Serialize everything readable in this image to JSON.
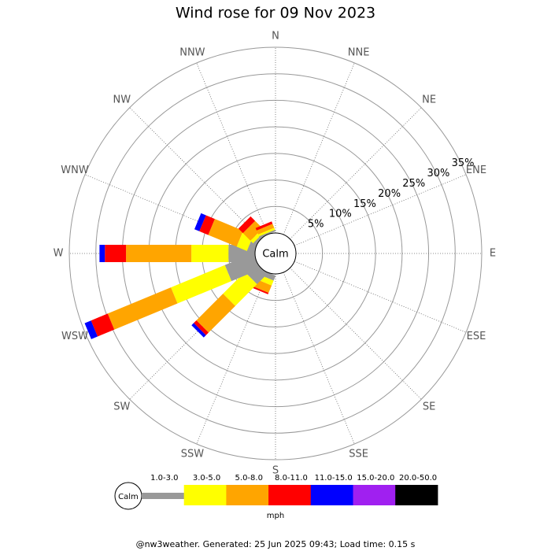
{
  "chart_data": {
    "type": "windrose",
    "title": "Wind rose for 09 Nov 2023",
    "calm_label": "Calm",
    "categories": [
      "N",
      "NNE",
      "NE",
      "ENE",
      "E",
      "ESE",
      "SE",
      "SSE",
      "S",
      "SSW",
      "SW",
      "WSW",
      "W",
      "WNW",
      "NW",
      "NNW"
    ],
    "rlim": [
      0,
      35
    ],
    "rticks": [
      {
        "value": 5,
        "label": "5%"
      },
      {
        "value": 10,
        "label": "10%"
      },
      {
        "value": 15,
        "label": "15%"
      },
      {
        "value": 20,
        "label": "20%"
      },
      {
        "value": 25,
        "label": "25%"
      },
      {
        "value": 30,
        "label": "30%"
      },
      {
        "value": 35,
        "label": "35%"
      }
    ],
    "series": [
      {
        "name": "1.0-3.0",
        "color": "#999999",
        "values": [
          0,
          0,
          0,
          0,
          0,
          0,
          0,
          0,
          0,
          1.0,
          2.7,
          5.8,
          5.0,
          1.3,
          0.5,
          0.3
        ]
      },
      {
        "name": "3.0-5.0",
        "color": "#ffff00",
        "values": [
          0,
          0,
          0,
          0,
          0,
          0,
          0,
          0,
          0,
          1.0,
          5.8,
          11,
          7,
          2.1,
          0.7,
          0.4
        ]
      },
      {
        "name": "5.0-8.0",
        "color": "#ffa500",
        "values": [
          0,
          0,
          0,
          0,
          0,
          0,
          0,
          0,
          0,
          1.5,
          7.1,
          12.9,
          12.3,
          5.8,
          2.0,
          0.8
        ]
      },
      {
        "name": "8.0-11.0",
        "color": "#ff0000",
        "values": [
          0,
          0,
          0,
          0,
          0,
          0,
          0,
          0,
          0,
          0.3,
          0.7,
          3.4,
          4,
          1.8,
          1.2,
          0.5
        ]
      },
      {
        "name": "11.0-15.0",
        "color": "#0000ff",
        "values": [
          0,
          0,
          0,
          0,
          0,
          0,
          0,
          0,
          0,
          0,
          0.6,
          1.3,
          1.0,
          1.0,
          0,
          0
        ]
      },
      {
        "name": "15.0-20.0",
        "color": "#a020f0",
        "values": [
          0,
          0,
          0,
          0,
          0,
          0,
          0,
          0,
          0,
          0,
          0,
          0,
          0,
          0,
          0,
          0
        ]
      },
      {
        "name": "20.0-50.0",
        "color": "#000000",
        "values": [
          0,
          0,
          0,
          0,
          0,
          0,
          0,
          0,
          0,
          0,
          0,
          0,
          0,
          0,
          0,
          0
        ]
      }
    ],
    "unit": "mph",
    "footer": "@nw3weather. Generated: 25 Jun 2025 09:43; Load time: 0.15 s"
  }
}
